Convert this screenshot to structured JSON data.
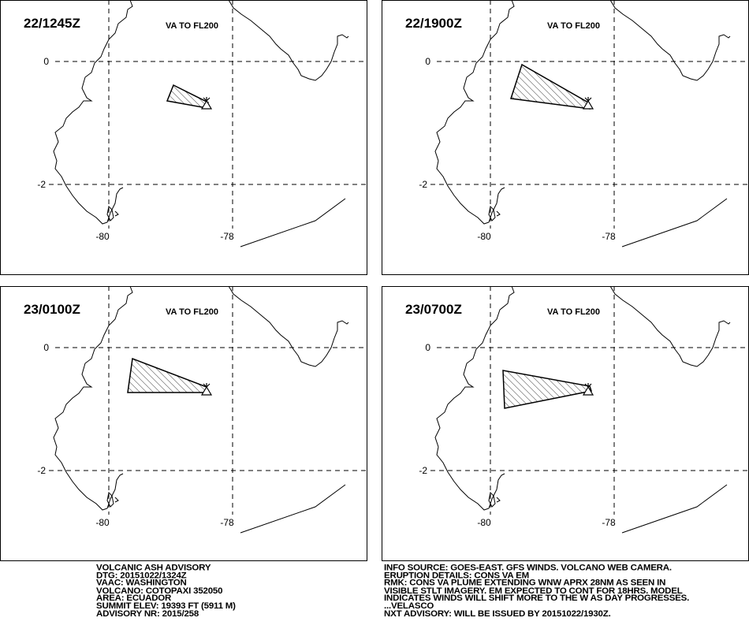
{
  "panels": [
    {
      "time": "22/1245Z",
      "level": "VA TO FL200",
      "lat_labels": [
        "0",
        "-2"
      ],
      "lon_labels": [
        "-80",
        "-78"
      ]
    },
    {
      "time": "22/1900Z",
      "level": "VA TO FL200",
      "lat_labels": [
        "0",
        "-2"
      ],
      "lon_labels": [
        "-80",
        "-78"
      ]
    },
    {
      "time": "23/0100Z",
      "level": "VA TO FL200",
      "lat_labels": [
        "0",
        "-2"
      ],
      "lon_labels": [
        "-80",
        "-78"
      ]
    },
    {
      "time": "23/0700Z",
      "level": "VA TO FL200",
      "lat_labels": [
        "0",
        "-2"
      ],
      "lon_labels": [
        "-80",
        "-78"
      ]
    }
  ],
  "advisory_left": [
    "VOLCANIC ASH ADVISORY",
    "DTG: 20151022/1324Z",
    "VAAC: WASHINGTON",
    "VOLCANO: COTOPAXI 352050",
    "AREA: ECUADOR",
    "SUMMIT ELEV: 19393 FT (5911 M)",
    "ADVISORY NR: 2015/258"
  ],
  "advisory_right": [
    "INFO SOURCE: GOES-EAST. GFS WINDS. VOLCANO WEB CAMERA.",
    "ERUPTION DETAILS: CONS VA EM",
    "RMK: CONS VA PLUME EXTENDING WNW APRX 28NM AS SEEN IN",
    "VISIBLE STLT IMAGERY. EM EXPECTED TO CONT FOR 18HRS. MODEL",
    "INDICATES WINDS WILL SHIFT MORE TO THE W AS DAY PROGRESSES.",
    "...VELASCO",
    "NXT ADVISORY: WILL BE ISSUED BY 20151022/1930Z."
  ]
}
